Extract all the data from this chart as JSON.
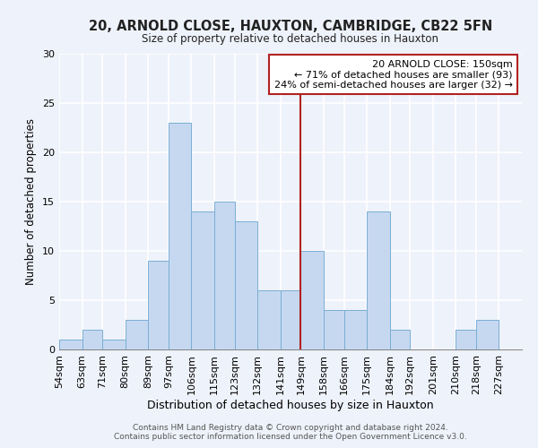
{
  "title": "20, ARNOLD CLOSE, HAUXTON, CAMBRIDGE, CB22 5FN",
  "subtitle": "Size of property relative to detached houses in Hauxton",
  "xlabel": "Distribution of detached houses by size in Hauxton",
  "ylabel": "Number of detached properties",
  "footnote1": "Contains HM Land Registry data © Crown copyright and database right 2024.",
  "footnote2": "Contains public sector information licensed under the Open Government Licence v3.0.",
  "bin_labels": [
    "54sqm",
    "63sqm",
    "71sqm",
    "80sqm",
    "89sqm",
    "97sqm",
    "106sqm",
    "115sqm",
    "123sqm",
    "132sqm",
    "141sqm",
    "149sqm",
    "158sqm",
    "166sqm",
    "175sqm",
    "184sqm",
    "192sqm",
    "201sqm",
    "210sqm",
    "218sqm",
    "227sqm"
  ],
  "bin_edges": [
    54,
    63,
    71,
    80,
    89,
    97,
    106,
    115,
    123,
    132,
    141,
    149,
    158,
    166,
    175,
    184,
    192,
    201,
    210,
    218,
    227,
    236
  ],
  "counts": [
    1,
    2,
    1,
    3,
    9,
    23,
    14,
    15,
    13,
    6,
    6,
    10,
    4,
    4,
    14,
    2,
    0,
    0,
    2,
    3,
    0
  ],
  "bar_color": "#c5d8f0",
  "bar_edgecolor": "#7aaed4",
  "property_line_x": 149,
  "property_line_color": "#b22222",
  "annotation_title": "20 ARNOLD CLOSE: 150sqm",
  "annotation_line1": "← 71% of detached houses are smaller (93)",
  "annotation_line2": "24% of semi-detached houses are larger (32) →",
  "annotation_box_color": "white",
  "annotation_box_edgecolor": "#b22222",
  "ylim": [
    0,
    30
  ],
  "yticks": [
    0,
    5,
    10,
    15,
    20,
    25,
    30
  ],
  "bg_color": "#eef2fa",
  "grid_color": "white",
  "title_fontsize": 10.5,
  "subtitle_fontsize": 8.5,
  "xlabel_fontsize": 9,
  "ylabel_fontsize": 8.5,
  "tick_fontsize": 8,
  "annot_fontsize": 8,
  "footnote_fontsize": 6.5
}
